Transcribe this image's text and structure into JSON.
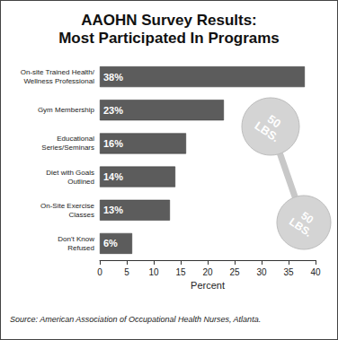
{
  "chart_data": {
    "type": "bar",
    "title": "AAOHN Survey Results:\nMost Participated In Programs",
    "orientation": "horizontal",
    "categories": [
      "On-site Trained Health/\nWellness Professional",
      "Gym Membership",
      "Educational\nSeries/Seminars",
      "Diet with Goals\nOutlined",
      "On-Site Exercise\nClasses",
      "Don't Know\nRefused"
    ],
    "values": [
      38,
      23,
      16,
      14,
      13,
      6
    ],
    "value_labels": [
      "38%",
      "23%",
      "16%",
      "14%",
      "13%",
      "6%"
    ],
    "data_labels": true,
    "color": "#5c5c5c",
    "xlabel": "Percent",
    "xlim": [
      0,
      40
    ],
    "xticks": [
      0,
      5,
      10,
      15,
      20,
      25,
      30,
      35,
      40
    ],
    "grid": false,
    "annotations": [
      "50\nLBS.",
      "50\nLBS."
    ],
    "source": "Source: American Association of Occupational Health Nurses, Atlanta."
  }
}
